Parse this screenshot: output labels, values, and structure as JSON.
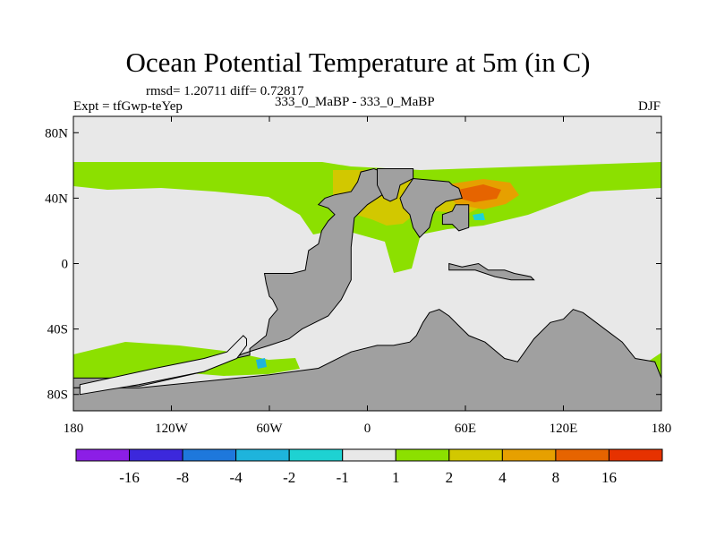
{
  "title": "Ocean Potential Temperature at 5m (in C)",
  "stats": "rmsd= 1.20711  diff= 0.72817",
  "expt": "Expt = tfGwp-teYep",
  "comparison": "333_0_MaBP - 333_0_MaBP",
  "season": "DJF",
  "chart_data": {
    "type": "map-contour",
    "projection": "cylindrical equidistant",
    "lon_range": [
      -180,
      180
    ],
    "lat_range": [
      -90,
      90
    ],
    "x_ticks": [
      {
        "lon": -180,
        "label": "180"
      },
      {
        "lon": -120,
        "label": "120W"
      },
      {
        "lon": -60,
        "label": "60W"
      },
      {
        "lon": 0,
        "label": "0"
      },
      {
        "lon": 60,
        "label": "60E"
      },
      {
        "lon": 120,
        "label": "120E"
      },
      {
        "lon": 180,
        "label": "180"
      }
    ],
    "y_ticks": [
      {
        "lat": 80,
        "label": "80N"
      },
      {
        "lat": 40,
        "label": "40N"
      },
      {
        "lat": 0,
        "label": "0"
      },
      {
        "lat": -40,
        "label": "40S"
      },
      {
        "lat": -80,
        "label": "80S"
      }
    ],
    "colorbar": {
      "colors": [
        "#8c1ee6",
        "#3c28dc",
        "#1e78dc",
        "#1eb4dc",
        "#1ed2d2",
        "#e8e8e8",
        "#8ce000",
        "#d2c800",
        "#e6a000",
        "#e66400",
        "#e63200"
      ],
      "labels": [
        "-16",
        "-8",
        "-4",
        "-2",
        "-1",
        "1",
        "2",
        "4",
        "8",
        "16"
      ]
    },
    "land_color": "#a0a0a0",
    "background_color": "#e8e8e8",
    "regions": [
      {
        "name": "land-america",
        "level": "land",
        "points": [
          [
            -180,
            -70
          ],
          [
            -140,
            -70
          ],
          [
            -100,
            -62
          ],
          [
            -72,
            -56
          ],
          [
            -72,
            -52
          ],
          [
            -62,
            -44
          ],
          [
            -60,
            -34
          ],
          [
            -55,
            -28
          ],
          [
            -58,
            -22
          ],
          [
            -60,
            -20
          ],
          [
            -62,
            -12
          ],
          [
            -63,
            -6
          ],
          [
            -46,
            -6
          ],
          [
            -38,
            -4
          ],
          [
            -36,
            8
          ],
          [
            -30,
            12
          ],
          [
            -28,
            20
          ],
          [
            -24,
            26
          ],
          [
            -20,
            30
          ],
          [
            -24,
            34
          ],
          [
            -30,
            36
          ],
          [
            -26,
            40
          ],
          [
            -20,
            42
          ],
          [
            -10,
            44
          ],
          [
            -6,
            50
          ],
          [
            -4,
            56
          ],
          [
            4,
            58
          ],
          [
            14,
            54
          ],
          [
            16,
            48
          ],
          [
            12,
            44
          ],
          [
            6,
            40
          ],
          [
            0,
            36
          ],
          [
            -8,
            28
          ],
          [
            -10,
            10
          ],
          [
            -10,
            -10
          ],
          [
            -16,
            -22
          ],
          [
            -24,
            -32
          ],
          [
            -40,
            -40
          ],
          [
            -48,
            -46
          ],
          [
            -60,
            -50
          ],
          [
            -76,
            -55
          ],
          [
            -100,
            -66
          ],
          [
            -140,
            -75
          ],
          [
            -180,
            -76
          ]
        ]
      },
      {
        "name": "land-africa-west",
        "level": "land",
        "points": [
          [
            6,
            58
          ],
          [
            28,
            58
          ],
          [
            28,
            52
          ],
          [
            24,
            50
          ],
          [
            20,
            48
          ],
          [
            18,
            40
          ],
          [
            14,
            38
          ],
          [
            10,
            40
          ],
          [
            6,
            48
          ]
        ]
      },
      {
        "name": "land-eurasia",
        "level": "land",
        "points": [
          [
            28,
            52
          ],
          [
            50,
            50
          ],
          [
            52,
            48
          ],
          [
            56,
            46
          ],
          [
            58,
            40
          ],
          [
            48,
            38
          ],
          [
            42,
            34
          ],
          [
            40,
            30
          ],
          [
            38,
            22
          ],
          [
            32,
            16
          ],
          [
            28,
            22
          ],
          [
            26,
            30
          ],
          [
            22,
            34
          ],
          [
            20,
            40
          ],
          [
            24,
            46
          ]
        ]
      },
      {
        "name": "land-east-asia",
        "level": "land",
        "points": [
          [
            54,
            36
          ],
          [
            62,
            36
          ],
          [
            62,
            22
          ],
          [
            56,
            20
          ],
          [
            52,
            24
          ],
          [
            46,
            24
          ],
          [
            46,
            30
          ],
          [
            52,
            32
          ]
        ]
      },
      {
        "name": "land-southern",
        "level": "land",
        "points": [
          [
            -180,
            -90
          ],
          [
            180,
            -90
          ],
          [
            180,
            -70
          ],
          [
            176,
            -60
          ],
          [
            164,
            -58
          ],
          [
            156,
            -48
          ],
          [
            148,
            -42
          ],
          [
            140,
            -36
          ],
          [
            132,
            -30
          ],
          [
            126,
            -28
          ],
          [
            120,
            -34
          ],
          [
            112,
            -36
          ],
          [
            102,
            -46
          ],
          [
            92,
            -60
          ],
          [
            84,
            -58
          ],
          [
            72,
            -48
          ],
          [
            62,
            -44
          ],
          [
            56,
            -38
          ],
          [
            50,
            -32
          ],
          [
            44,
            -28
          ],
          [
            38,
            -30
          ],
          [
            34,
            -36
          ],
          [
            30,
            -44
          ],
          [
            26,
            -48
          ],
          [
            16,
            -50
          ],
          [
            6,
            -50
          ],
          [
            -10,
            -54
          ],
          [
            -30,
            -64
          ],
          [
            -60,
            -68
          ],
          [
            -100,
            -72
          ],
          [
            -140,
            -76
          ],
          [
            -180,
            -76
          ]
        ]
      },
      {
        "name": "land-india",
        "level": "land",
        "points": [
          [
            50,
            0
          ],
          [
            58,
            -2
          ],
          [
            68,
            0
          ],
          [
            74,
            -4
          ],
          [
            84,
            -4
          ],
          [
            90,
            -6
          ],
          [
            100,
            -8
          ],
          [
            102,
            -10
          ],
          [
            88,
            -10
          ],
          [
            78,
            -8
          ],
          [
            66,
            -4
          ],
          [
            50,
            -4
          ]
        ]
      },
      {
        "name": "sea-tethys",
        "level": "background",
        "points": [
          [
            -176,
            -74
          ],
          [
            -130,
            -64
          ],
          [
            -100,
            -58
          ],
          [
            -86,
            -54
          ],
          [
            -80,
            -48
          ],
          [
            -76,
            -44
          ],
          [
            -74,
            -46
          ],
          [
            -74,
            -50
          ],
          [
            -80,
            -58
          ],
          [
            -100,
            -66
          ],
          [
            -140,
            -74
          ],
          [
            -176,
            -80
          ]
        ]
      }
    ]
  }
}
